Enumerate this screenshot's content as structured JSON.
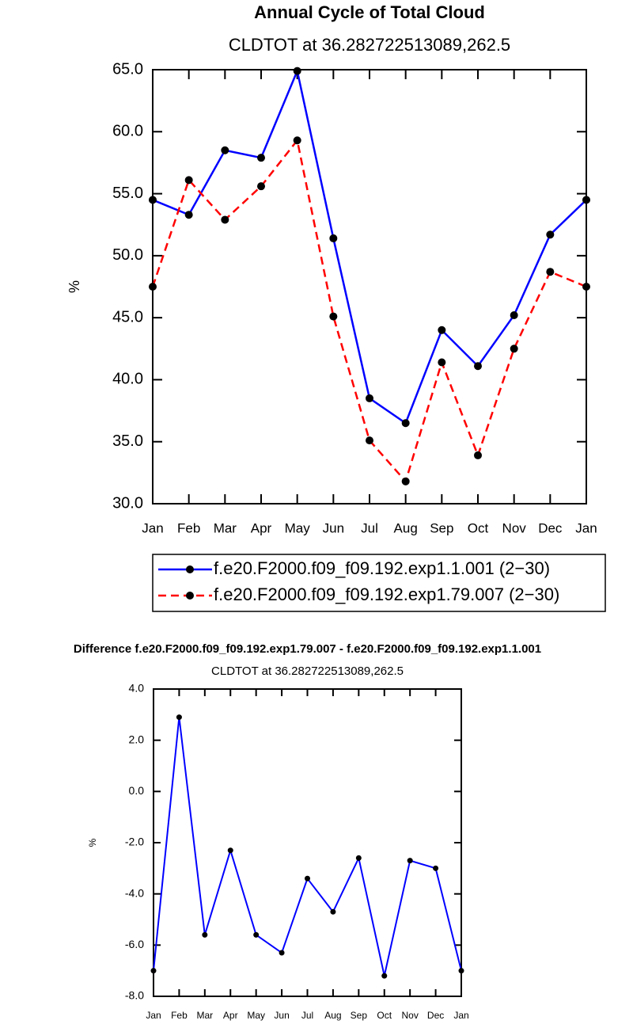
{
  "chart_data": [
    {
      "type": "line",
      "title": "Annual Cycle of Total Cloud",
      "subtitle": "CLDTOT at 36.282722513089,262.5",
      "y_label": "%",
      "categories": [
        "Jan",
        "Feb",
        "Mar",
        "Apr",
        "May",
        "Jun",
        "Jul",
        "Aug",
        "Sep",
        "Oct",
        "Nov",
        "Dec",
        "Jan"
      ],
      "series": [
        {
          "name": "f.e20.F2000.f09_f09.192.exp1.1.001 (2−30)",
          "color": "#0000ff",
          "linestyle": "solid",
          "values": [
            54.5,
            53.3,
            58.5,
            57.9,
            64.9,
            51.4,
            38.5,
            36.5,
            44.0,
            41.1,
            45.2,
            51.7,
            54.5
          ]
        },
        {
          "name": "f.e20.F2000.f09_f09.192.exp1.79.007 (2−30)",
          "color": "#ff0000",
          "linestyle": "dashed",
          "values": [
            47.5,
            56.1,
            52.9,
            55.6,
            59.3,
            45.1,
            35.1,
            31.8,
            41.4,
            33.9,
            42.5,
            48.7,
            47.5
          ]
        }
      ],
      "ylim": [
        30,
        65
      ],
      "yticks": [
        {
          "value": 30,
          "label": "30.0"
        },
        {
          "value": 35,
          "label": "35.0"
        },
        {
          "value": 40,
          "label": "40.0"
        },
        {
          "value": 45,
          "label": "45.0"
        },
        {
          "value": 50,
          "label": "50.0"
        },
        {
          "value": 55,
          "label": "55.0"
        },
        {
          "value": 60,
          "label": "60.0"
        },
        {
          "value": 65,
          "label": "65.0"
        }
      ],
      "legend": "bottom"
    },
    {
      "type": "line",
      "title": "Difference f.e20.F2000.f09_f09.192.exp1.79.007 - f.e20.F2000.f09_f09.192.exp1.1.001",
      "subtitle": "CLDTOT at 36.282722513089,262.5",
      "y_label": "%",
      "categories": [
        "Jan",
        "Feb",
        "Mar",
        "Apr",
        "May",
        "Jun",
        "Jul",
        "Aug",
        "Sep",
        "Oct",
        "Nov",
        "Dec",
        "Jan"
      ],
      "values": [
        -7.0,
        2.9,
        -5.6,
        -2.3,
        -5.6,
        -6.3,
        -3.4,
        -4.7,
        -2.6,
        -7.2,
        -2.7,
        -3.0,
        -7.0
      ],
      "color": "#0000ff",
      "ylim": [
        -8,
        4
      ],
      "yticks": [
        {
          "value": -8,
          "label": "-8.0"
        },
        {
          "value": -6,
          "label": "-6.0"
        },
        {
          "value": -4,
          "label": "-4.0"
        },
        {
          "value": -2,
          "label": "-2.0"
        },
        {
          "value": 0,
          "label": "0.0"
        },
        {
          "value": 2,
          "label": "2.0"
        },
        {
          "value": 4,
          "label": "4.0"
        }
      ]
    }
  ]
}
